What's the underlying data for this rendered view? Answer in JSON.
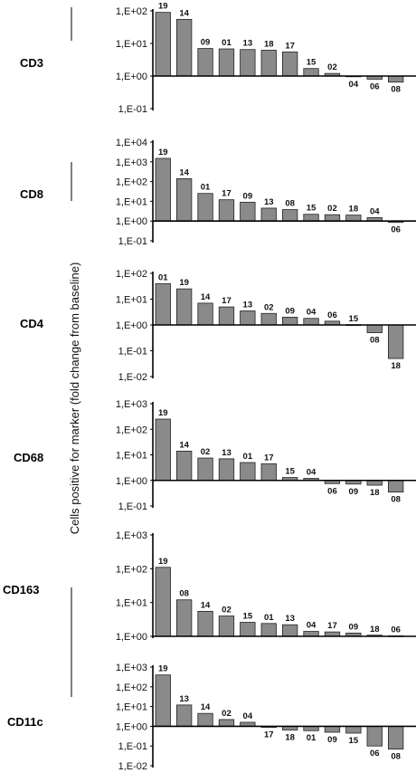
{
  "chart_data": {
    "y_label": "Cells positive for marker     (fold change from baseline)",
    "colors": {
      "bar": "#8a8a8a",
      "bar_stroke": "#222222",
      "axis": "#000000"
    },
    "panels": [
      {
        "type": "bar",
        "title": "CD3",
        "log_scale": true,
        "ylim": [
          0.1,
          100
        ],
        "ticks": [
          "1,E+02",
          "1,E+01",
          "1,E+00",
          "1,E-01"
        ],
        "tick_values": [
          100,
          10,
          1,
          0.1
        ],
        "categories": [
          "19",
          "14",
          "09",
          "01",
          "13",
          "18",
          "17",
          "15",
          "02",
          "04",
          "06",
          "08"
        ],
        "values": [
          90,
          55,
          7,
          6.8,
          6.5,
          6.2,
          5.5,
          1.7,
          1.2,
          0.97,
          0.8,
          0.65
        ]
      },
      {
        "type": "bar",
        "title": "CD8",
        "log_scale": true,
        "ylim": [
          0.1,
          10000
        ],
        "ticks": [
          "1,E+04",
          "1,E+03",
          "1,E+02",
          "1,E+01",
          "1,E+00",
          "1,E-01"
        ],
        "tick_values": [
          10000,
          1000,
          100,
          10,
          1,
          0.1
        ],
        "categories": [
          "19",
          "14",
          "01",
          "17",
          "09",
          "13",
          "08",
          "15",
          "02",
          "18",
          "04",
          "06"
        ],
        "values": [
          1500,
          140,
          25,
          12,
          9,
          4.5,
          3.8,
          2.2,
          2.1,
          2,
          1.5,
          0.85
        ]
      },
      {
        "type": "bar",
        "title": "CD4",
        "log_scale": true,
        "ylim": [
          0.01,
          100
        ],
        "ticks": [
          "1,E+02",
          "1,E+01",
          "1,E+00",
          "1,E-01",
          "1,E-02"
        ],
        "tick_values": [
          100,
          10,
          1,
          0.1,
          0.01
        ],
        "categories": [
          "01",
          "19",
          "14",
          "17",
          "13",
          "02",
          "09",
          "04",
          "06",
          "15",
          "08",
          "18"
        ],
        "values": [
          40,
          25,
          7,
          5,
          3.5,
          2.8,
          2,
          1.8,
          1.4,
          1.02,
          0.5,
          0.05
        ]
      },
      {
        "type": "bar",
        "title": "CD68",
        "log_scale": true,
        "ylim": [
          0.1,
          1000
        ],
        "ticks": [
          "1,E+03",
          "1,E+02",
          "1,E+01",
          "1,E+00",
          "1,E-01"
        ],
        "tick_values": [
          1000,
          100,
          10,
          1,
          0.1
        ],
        "categories": [
          "19",
          "14",
          "02",
          "13",
          "01",
          "17",
          "15",
          "04",
          "06",
          "09",
          "18",
          "08"
        ],
        "values": [
          250,
          14,
          7.5,
          7,
          5,
          4.5,
          1.3,
          1.2,
          0.75,
          0.72,
          0.65,
          0.35
        ]
      },
      {
        "type": "bar",
        "title": "CD163",
        "log_scale": true,
        "ylim": [
          1,
          1000
        ],
        "ticks": [
          "1,E+03",
          "1,E+02",
          "1,E+01",
          "1,E+00"
        ],
        "tick_values": [
          1000,
          100,
          10,
          1
        ],
        "categories": [
          "19",
          "08",
          "14",
          "02",
          "15",
          "01",
          "13",
          "04",
          "17",
          "09",
          "18",
          "06"
        ],
        "values": [
          110,
          12,
          5.5,
          4,
          2.6,
          2.4,
          2.2,
          1.4,
          1.35,
          1.25,
          1.08,
          1.03
        ]
      },
      {
        "type": "bar",
        "title": "CD11c",
        "log_scale": true,
        "ylim": [
          0.01,
          1000
        ],
        "ticks": [
          "1,E+03",
          "1,E+02",
          "1,E+01",
          "1,E+00",
          "1,E-01",
          "1,E-02"
        ],
        "tick_values": [
          1000,
          100,
          10,
          1,
          0.1,
          0.01
        ],
        "categories": [
          "19",
          "13",
          "14",
          "02",
          "04",
          "17",
          "18",
          "01",
          "09",
          "15",
          "06",
          "08"
        ],
        "values": [
          400,
          12,
          4.5,
          2.2,
          1.6,
          0.88,
          0.65,
          0.6,
          0.5,
          0.45,
          0.1,
          0.07
        ]
      }
    ]
  }
}
